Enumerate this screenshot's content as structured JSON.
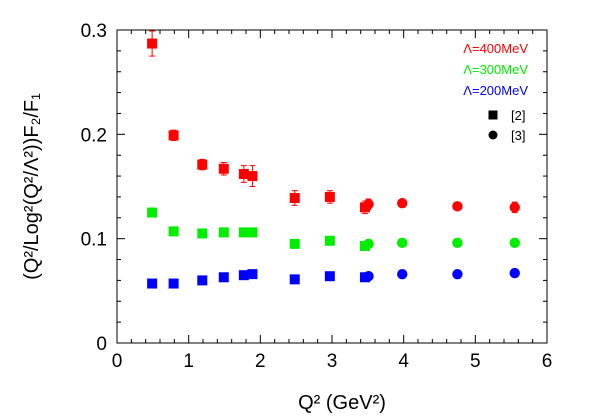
{
  "chart_data": {
    "type": "scatter",
    "xlabel": "Q² (GeV²)",
    "ylabel": "(Q²/Log²(Q²/Λ²))F₂/F₁",
    "xlim": [
      0,
      6
    ],
    "ylim": [
      0,
      0.3
    ],
    "xticks": [
      "0",
      "1",
      "2",
      "3",
      "4",
      "5",
      "6"
    ],
    "yticks": [
      "0",
      "0.1",
      "0.2",
      "0.3"
    ],
    "grid": false,
    "legend_position": "top-right",
    "series": [
      {
        "name": "Λ=400MeV",
        "color": "#ff0000",
        "points": [
          {
            "x": 0.49,
            "y": 0.287,
            "err": 0.012,
            "marker": "square"
          },
          {
            "x": 0.79,
            "y": 0.199,
            "err": 0.005,
            "marker": "square"
          },
          {
            "x": 1.19,
            "y": 0.171,
            "err": 0.005,
            "marker": "square"
          },
          {
            "x": 1.49,
            "y": 0.167,
            "err": 0.006,
            "marker": "square"
          },
          {
            "x": 1.77,
            "y": 0.162,
            "err": 0.008,
            "marker": "square"
          },
          {
            "x": 1.89,
            "y": 0.16,
            "err": 0.01,
            "marker": "square"
          },
          {
            "x": 2.48,
            "y": 0.139,
            "err": 0.007,
            "marker": "square"
          },
          {
            "x": 2.97,
            "y": 0.14,
            "err": 0.006,
            "marker": "square"
          },
          {
            "x": 3.46,
            "y": 0.13,
            "err": 0.006,
            "marker": "square"
          },
          {
            "x": 3.51,
            "y": 0.133,
            "err": 0.005,
            "marker": "circle"
          },
          {
            "x": 3.98,
            "y": 0.134,
            "err": 0.003,
            "marker": "circle"
          },
          {
            "x": 4.75,
            "y": 0.131,
            "err": 0.003,
            "marker": "circle"
          },
          {
            "x": 5.55,
            "y": 0.13,
            "err": 0.005,
            "marker": "circle"
          }
        ]
      },
      {
        "name": "Λ=300MeV",
        "color": "#00ee00",
        "points": [
          {
            "x": 0.49,
            "y": 0.125,
            "err": 0.004,
            "marker": "square"
          },
          {
            "x": 0.79,
            "y": 0.107,
            "err": 0.002,
            "marker": "square"
          },
          {
            "x": 1.19,
            "y": 0.105,
            "err": 0.002,
            "marker": "square"
          },
          {
            "x": 1.49,
            "y": 0.106,
            "err": 0.002,
            "marker": "square"
          },
          {
            "x": 1.77,
            "y": 0.106,
            "err": 0.003,
            "marker": "square"
          },
          {
            "x": 1.89,
            "y": 0.106,
            "err": 0.004,
            "marker": "square"
          },
          {
            "x": 2.48,
            "y": 0.095,
            "err": 0.003,
            "marker": "square"
          },
          {
            "x": 2.97,
            "y": 0.098,
            "err": 0.002,
            "marker": "square"
          },
          {
            "x": 3.46,
            "y": 0.093,
            "err": 0.002,
            "marker": "square"
          },
          {
            "x": 3.51,
            "y": 0.095,
            "err": 0.002,
            "marker": "circle"
          },
          {
            "x": 3.98,
            "y": 0.096,
            "err": 0.001,
            "marker": "circle"
          },
          {
            "x": 4.75,
            "y": 0.096,
            "err": 0.001,
            "marker": "circle"
          },
          {
            "x": 5.55,
            "y": 0.096,
            "err": 0.001,
            "marker": "circle"
          }
        ]
      },
      {
        "name": "Λ=200MeV",
        "color": "#0000ff",
        "points": [
          {
            "x": 0.49,
            "y": 0.057,
            "err": 0.002,
            "marker": "square"
          },
          {
            "x": 0.79,
            "y": 0.057,
            "err": 0.001,
            "marker": "square"
          },
          {
            "x": 1.19,
            "y": 0.06,
            "err": 0.001,
            "marker": "square"
          },
          {
            "x": 1.49,
            "y": 0.063,
            "err": 0.001,
            "marker": "square"
          },
          {
            "x": 1.77,
            "y": 0.065,
            "err": 0.002,
            "marker": "square"
          },
          {
            "x": 1.89,
            "y": 0.066,
            "err": 0.002,
            "marker": "square"
          },
          {
            "x": 2.48,
            "y": 0.061,
            "err": 0.002,
            "marker": "square"
          },
          {
            "x": 2.97,
            "y": 0.064,
            "err": 0.001,
            "marker": "square"
          },
          {
            "x": 3.46,
            "y": 0.063,
            "err": 0.001,
            "marker": "square"
          },
          {
            "x": 3.51,
            "y": 0.064,
            "err": 0.001,
            "marker": "circle"
          },
          {
            "x": 3.98,
            "y": 0.066,
            "err": 0.001,
            "marker": "circle"
          },
          {
            "x": 4.75,
            "y": 0.066,
            "err": 0.001,
            "marker": "circle"
          },
          {
            "x": 5.55,
            "y": 0.067,
            "err": 0.001,
            "marker": "circle"
          }
        ]
      }
    ],
    "marker_legend": [
      {
        "marker": "square",
        "label": "[2]"
      },
      {
        "marker": "circle",
        "label": "[3]"
      }
    ]
  }
}
